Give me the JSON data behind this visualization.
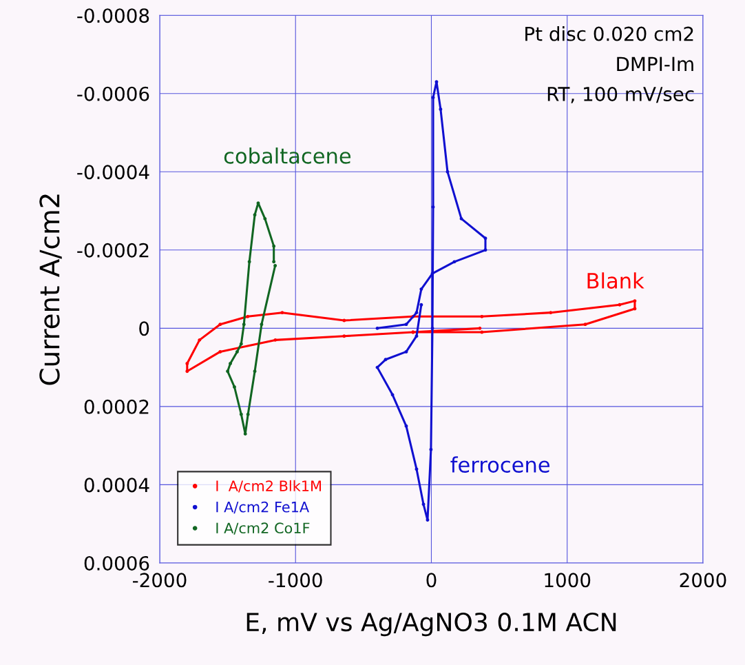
{
  "chart_data": {
    "type": "line",
    "xlabel": "E, mV vs Ag/AgNO3 0.1M ACN",
    "ylabel": "Current A/cm2",
    "xlim": [
      -2000,
      2000
    ],
    "xticks": [
      -2000,
      -1000,
      0,
      1000,
      2000
    ],
    "ylim": [
      0.0006,
      -0.0008
    ],
    "yticks": [
      -0.0008,
      -0.0006,
      -0.0004,
      -0.0002,
      0,
      0.0002,
      0.0004,
      0.0006
    ],
    "grid": true,
    "legend": "bottom left",
    "marker": "circle",
    "line_style": "solid",
    "annotations": [
      "Pt disc 0.020 cm2",
      "DMPI-Im",
      "RT, 100 mV/sec",
      "Blank",
      "ferrocene",
      "cobaltacene"
    ],
    "series": [
      {
        "name": "I  A/cm2 Blk1M",
        "color": "#ff0000",
        "x": [
          357,
          -135,
          -642,
          -1149,
          -1555,
          -1798,
          -1798,
          -1707,
          -1555,
          -1352,
          -1098,
          -642,
          -135,
          372,
          879,
          1386,
          1498,
          1498,
          1133,
          372,
          -135
        ],
        "values": [
          0,
          1e-05,
          2e-05,
          3e-05,
          6e-05,
          0.00011,
          9e-05,
          3e-05,
          -1e-05,
          -3e-05,
          -4e-05,
          -2e-05,
          -3e-05,
          -3e-05,
          -4e-05,
          -6e-05,
          -7e-05,
          -5e-05,
          -1e-05,
          1e-05,
          1e-05
        ]
      },
      {
        "name": "I A/cm2 Fe1A",
        "color": "#1010d0",
        "x": [
          -398,
          -185,
          -109,
          -74,
          8,
          170,
          398,
          398,
          221,
          119,
          68,
          38,
          13,
          13,
          8,
          -3,
          -28,
          -58,
          -109,
          -185,
          -286,
          -398,
          -337,
          -185,
          -109,
          -74
        ],
        "values": [
          0,
          -1e-05,
          -4e-05,
          -0.0001,
          -0.00014,
          -0.00017,
          -0.0002,
          -0.00023,
          -0.00028,
          -0.0004,
          -0.00056,
          -0.00063,
          -0.00059,
          -0.00031,
          0,
          0.00031,
          0.00049,
          0.00045,
          0.00036,
          0.00025,
          0.00017,
          0.0001,
          8e-05,
          6e-05,
          2e-05,
          -6e-05
        ]
      },
      {
        "name": "I A/cm2 Co1F",
        "color": "#116622",
        "x": [
          -1150,
          -1250,
          -1300,
          -1350,
          -1370,
          -1400,
          -1450,
          -1500,
          -1480,
          -1430,
          -1400,
          -1380,
          -1340,
          -1300,
          -1275,
          -1225,
          -1160,
          -1160
        ],
        "values": [
          -0.00016,
          -1e-05,
          0.00011,
          0.00022,
          0.00027,
          0.00022,
          0.00015,
          0.00011,
          9e-05,
          6e-05,
          4e-05,
          -1e-05,
          -0.00017,
          -0.00029,
          -0.00032,
          -0.00028,
          -0.00021,
          -0.00017
        ]
      }
    ]
  }
}
